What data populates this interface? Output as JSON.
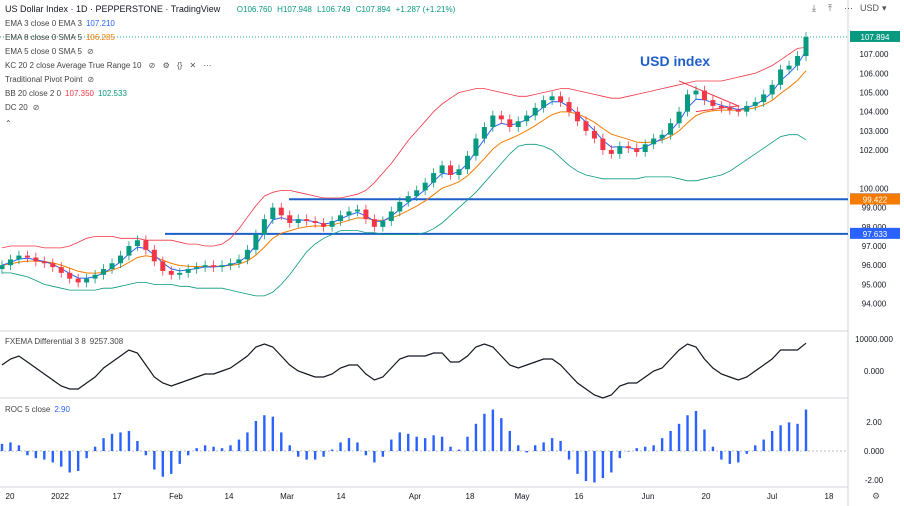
{
  "header": {
    "symbol": "US Dollar Index",
    "interval": "1D",
    "broker": "PEPPERSTONE",
    "platform": "TradingView",
    "open": "O106.760",
    "high": "H107.948",
    "low": "L106.749",
    "close": "C107.894",
    "change": "+1.287 (+1.21%)",
    "currency": "USD"
  },
  "indicators": [
    {
      "label": "EMA 3 close 0 EMA 3",
      "value": "107.210",
      "color": "#2962ff"
    },
    {
      "label": "EMA 8 close 0 SMA 5",
      "value": "106.285",
      "color": "#f57c00"
    },
    {
      "label": "EMA 5 close 0 SMA 5",
      "value": "",
      "color": "#999999"
    },
    {
      "label": "KC 20 2 close Average True Range 10",
      "value": "",
      "color": "#999999"
    },
    {
      "label": "Traditional Pivot Point",
      "value": "",
      "color": "#999999"
    },
    {
      "label": "BB 20 close 2 0",
      "value": "107.350",
      "value2": "102.533",
      "color": "#f23645",
      "color2": "#089981"
    },
    {
      "label": "DC 20",
      "value": "",
      "color": "#999999"
    }
  ],
  "annotation": "USD index",
  "price_axis": {
    "ticks": [
      "107.000",
      "106.000",
      "105.000",
      "104.000",
      "103.000",
      "102.000",
      "100.000",
      "99.000",
      "98.000",
      "97.000",
      "96.000",
      "95.000",
      "94.000"
    ],
    "tick_values": [
      107,
      106,
      105,
      104,
      103,
      102,
      100,
      99,
      98,
      97,
      96,
      95,
      94
    ]
  },
  "price_boxes": [
    {
      "label": "107.894",
      "value": 107.894,
      "color": "#089981"
    },
    {
      "label": "99.434",
      "value": 99.434,
      "color": "#2962ff"
    },
    {
      "label": "99.422",
      "value": 99.422,
      "color": "#f57c00"
    },
    {
      "label": "97.633",
      "value": 97.633,
      "color": "#2962ff"
    }
  ],
  "time_axis": [
    "20",
    "2022",
    "17",
    "Feb",
    "14",
    "Mar",
    "14",
    "Apr",
    "18",
    "May",
    "16",
    "Jun",
    "20",
    "Jul",
    "18"
  ],
  "fxema_panel": {
    "label": "FXEMA Differential 3 8",
    "value": "9257.308",
    "ticks": [
      "10000.000",
      "0.000"
    ]
  },
  "roc_panel": {
    "label": "ROC 5 close",
    "value": "2.90",
    "ticks": [
      "2.00",
      "0.000",
      "-2.00"
    ]
  },
  "chart_data": {
    "type": "line",
    "title": "US Dollar Index",
    "xlabel": "",
    "ylabel": "",
    "ylim": [
      93.3,
      108.1
    ],
    "series": [
      {
        "name": "close",
        "values": [
          96.0,
          96.3,
          96.5,
          96.4,
          96.2,
          96.1,
          95.9,
          95.6,
          95.3,
          95.1,
          95.3,
          95.5,
          95.8,
          96.1,
          96.5,
          97.0,
          97.3,
          96.8,
          96.2,
          95.7,
          95.5,
          95.6,
          95.8,
          95.9,
          96.0,
          95.9,
          96.0,
          96.1,
          96.3,
          96.8,
          97.6,
          98.4,
          99.0,
          98.6,
          98.2,
          98.4,
          98.3,
          98.2,
          98.0,
          98.3,
          98.6,
          98.8,
          98.9,
          98.4,
          98.0,
          98.3,
          98.8,
          99.3,
          99.6,
          99.9,
          100.3,
          100.8,
          101.2,
          100.7,
          101.0,
          101.7,
          102.6,
          103.2,
          103.8,
          103.6,
          103.2,
          103.5,
          103.8,
          104.2,
          104.6,
          104.8,
          104.5,
          104.0,
          103.5,
          103.0,
          102.6,
          102.0,
          101.8,
          102.2,
          102.1,
          101.9,
          102.3,
          102.6,
          102.8,
          103.4,
          104.0,
          104.9,
          105.1,
          104.6,
          104.3,
          104.2,
          104.1,
          104.0,
          104.3,
          104.5,
          104.9,
          105.4,
          106.2,
          106.4,
          106.9,
          107.894
        ]
      },
      {
        "name": "bb-upper",
        "values": [
          96.9,
          97.0,
          97.0,
          97.0,
          97.0,
          96.9,
          96.9,
          96.9,
          97.0,
          97.2,
          97.4,
          97.5,
          97.5,
          97.5,
          97.4,
          97.4,
          97.4,
          97.3,
          97.3,
          97.3,
          97.3,
          97.2,
          97.1,
          97.1,
          97.0,
          97.0,
          97.1,
          97.4,
          97.9,
          98.5,
          99.1,
          99.6,
          99.8,
          99.9,
          99.9,
          99.8,
          99.7,
          99.6,
          99.5,
          99.5,
          99.5,
          99.6,
          99.7,
          99.9,
          100.3,
          100.8,
          101.3,
          101.9,
          102.5,
          103.0,
          103.5,
          104.0,
          104.4,
          104.7,
          105.0,
          105.1,
          105.2,
          105.2,
          105.1,
          105.0,
          104.9,
          104.8,
          104.8,
          104.9,
          105.0,
          105.1,
          105.2,
          105.2,
          105.1,
          105.0,
          104.9,
          104.8,
          104.7,
          104.7,
          104.8,
          104.9,
          105.0,
          105.1,
          105.2,
          105.3,
          105.4,
          105.5,
          105.6,
          105.6,
          105.6,
          105.6,
          105.7,
          105.8,
          105.9,
          106.0,
          106.2,
          106.4,
          106.7,
          107.0,
          107.3,
          107.35
        ]
      },
      {
        "name": "bb-lower",
        "values": [
          95.6,
          95.6,
          95.5,
          95.4,
          95.2,
          95.0,
          94.9,
          94.8,
          94.7,
          94.7,
          94.7,
          94.7,
          94.8,
          94.8,
          94.9,
          95.0,
          95.1,
          95.1,
          95.0,
          95.0,
          95.0,
          94.9,
          94.9,
          94.8,
          94.8,
          94.8,
          94.8,
          94.7,
          94.6,
          94.5,
          94.4,
          94.4,
          94.6,
          95.0,
          95.5,
          96.1,
          96.7,
          97.1,
          97.4,
          97.6,
          97.8,
          97.8,
          97.8,
          97.7,
          97.7,
          97.6,
          97.6,
          97.6,
          97.6,
          97.6,
          97.7,
          97.9,
          98.2,
          98.6,
          99.0,
          99.4,
          99.8,
          100.3,
          100.8,
          101.3,
          101.8,
          102.2,
          102.3,
          102.3,
          102.2,
          102.0,
          101.6,
          101.2,
          100.9,
          100.7,
          100.6,
          100.5,
          100.5,
          100.5,
          100.5,
          100.5,
          100.6,
          100.6,
          100.6,
          100.6,
          100.5,
          100.4,
          100.4,
          100.5,
          100.6,
          100.7,
          100.9,
          101.2,
          101.5,
          101.8,
          102.1,
          102.4,
          102.7,
          102.8,
          102.8,
          102.533
        ]
      },
      {
        "name": "fxema",
        "values": [
          0.2,
          0.4,
          0.5,
          0.3,
          0.1,
          -0.1,
          -0.3,
          -0.5,
          -0.6,
          -0.6,
          -0.4,
          -0.2,
          0.1,
          0.3,
          0.5,
          0.7,
          0.6,
          0.2,
          -0.2,
          -0.4,
          -0.5,
          -0.4,
          -0.3,
          -0.2,
          -0.1,
          -0.1,
          0.0,
          0.1,
          0.3,
          0.5,
          0.8,
          0.9,
          0.8,
          0.5,
          0.2,
          0.0,
          -0.1,
          -0.2,
          -0.2,
          -0.1,
          0.1,
          0.2,
          0.2,
          -0.1,
          -0.3,
          -0.2,
          0.1,
          0.4,
          0.5,
          0.5,
          0.5,
          0.6,
          0.6,
          0.3,
          0.3,
          0.5,
          0.8,
          0.9,
          0.8,
          0.5,
          0.2,
          0.1,
          0.2,
          0.3,
          0.4,
          0.4,
          0.2,
          -0.1,
          -0.4,
          -0.6,
          -0.8,
          -0.9,
          -0.8,
          -0.5,
          -0.4,
          -0.4,
          -0.2,
          0.0,
          0.1,
          0.4,
          0.7,
          0.9,
          0.8,
          0.4,
          0.1,
          -0.1,
          -0.2,
          -0.3,
          -0.2,
          0.0,
          0.2,
          0.4,
          0.7,
          0.7,
          0.7,
          0.926
        ]
      },
      {
        "name": "roc",
        "values": [
          0.5,
          0.6,
          0.4,
          -0.3,
          -0.5,
          -0.6,
          -0.8,
          -1.1,
          -1.5,
          -1.4,
          -0.5,
          0.3,
          0.9,
          1.2,
          1.3,
          1.4,
          0.7,
          -0.3,
          -1.3,
          -1.8,
          -1.6,
          -0.9,
          -0.3,
          0.2,
          0.4,
          0.3,
          0.2,
          0.4,
          0.8,
          1.3,
          2.1,
          2.5,
          2.4,
          1.3,
          0.4,
          -0.4,
          -0.6,
          -0.6,
          -0.4,
          0.1,
          0.6,
          0.9,
          0.6,
          -0.3,
          -0.8,
          -0.4,
          0.8,
          1.3,
          1.2,
          1.0,
          0.9,
          1.1,
          1.0,
          0.3,
          0.1,
          1.0,
          1.9,
          2.6,
          2.9,
          2.3,
          1.4,
          0.4,
          -0.1,
          0.4,
          0.6,
          0.9,
          0.7,
          -0.6,
          -1.6,
          -2.1,
          -2.2,
          -1.9,
          -1.5,
          -0.5,
          0.0,
          0.2,
          0.3,
          0.4,
          0.9,
          1.4,
          1.9,
          2.5,
          2.8,
          1.5,
          0.3,
          -0.6,
          -0.9,
          -0.8,
          -0.2,
          0.4,
          0.8,
          1.4,
          1.8,
          2.0,
          1.9,
          2.9
        ]
      }
    ],
    "support_lines": [
      99.434,
      97.633
    ],
    "grid": false
  }
}
